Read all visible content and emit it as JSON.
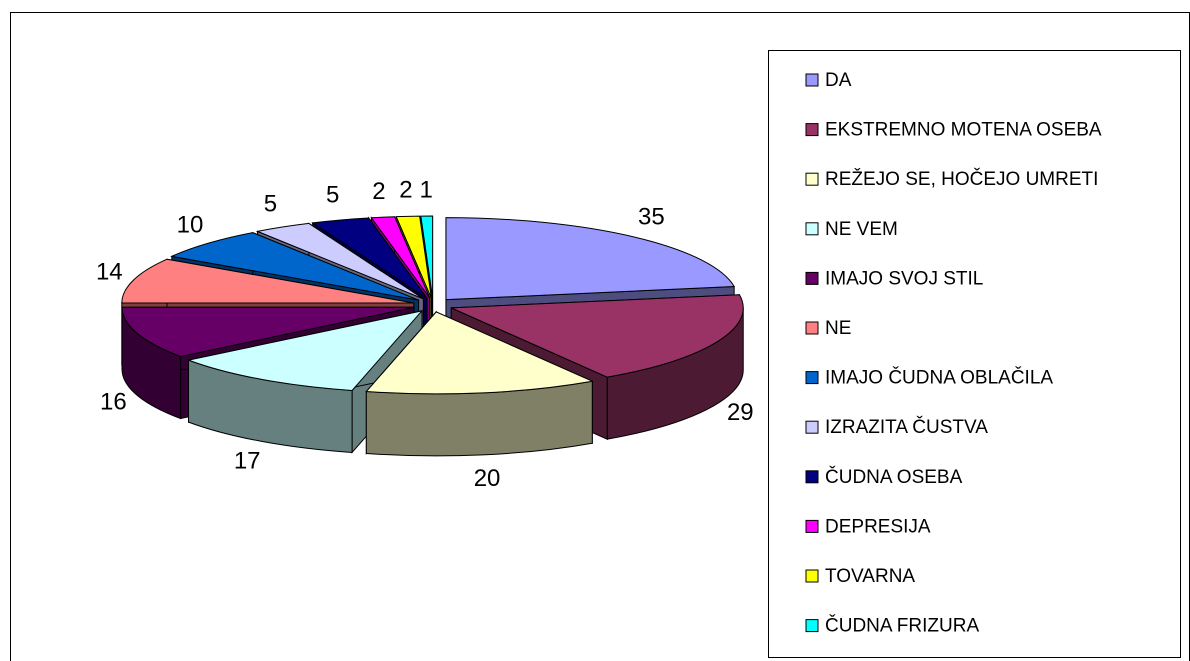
{
  "chart_data": {
    "type": "pie",
    "categories": [
      "DA",
      "EKSTREMNO MOTENA OSEBA",
      "REŽEJO SE, HOČEJO UMRETI",
      "NE VEM",
      "IMAJO SVOJ STIL",
      "NE",
      "IMAJO ČUDNA OBLAČILA",
      "IZRAZITA ČUSTVA",
      "ČUDNA OSEBA",
      "DEPRESIJA",
      "TOVARNA",
      "ČUDNA FRIZURA"
    ],
    "values": [
      35,
      29,
      20,
      17,
      16,
      14,
      10,
      5,
      5,
      2,
      2,
      1
    ],
    "colors": [
      "#9999ff",
      "#993366",
      "#ffffcc",
      "#ccffff",
      "#660066",
      "#ff8080",
      "#0066cc",
      "#ccccff",
      "#000080",
      "#ff00ff",
      "#ffff00",
      "#00ffff"
    ],
    "legend": "right"
  }
}
